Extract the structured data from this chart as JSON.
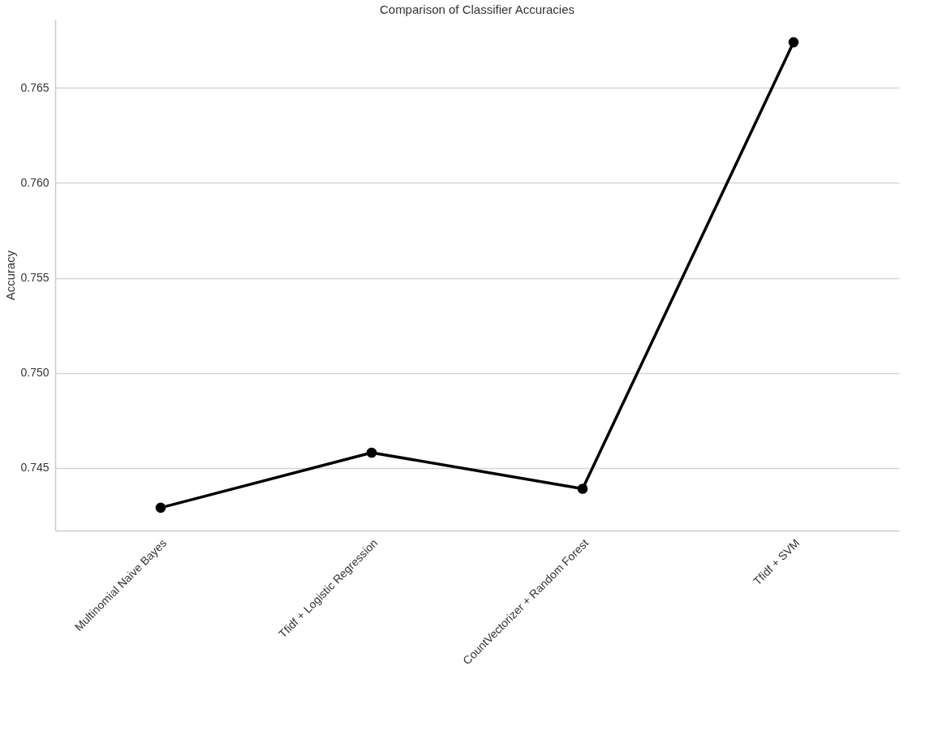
{
  "chart_data": {
    "type": "line",
    "title": "Comparison of Classifier Accuracies",
    "ylabel": "Accuracy",
    "categories": [
      "Multinomial Naive Bayes",
      "Tfidf + Logistic Regression",
      "CountVectorizer + Random Forest",
      "Tfidf + SVM"
    ],
    "series": [
      {
        "color": "#000000",
        "values": [
          0.7429,
          0.7458,
          0.7439,
          0.7674
        ]
      }
    ],
    "ylim": [
      0.7417,
      0.7686
    ],
    "yticks": [
      0.745,
      {
        "value": 0.75,
        "label": "0.750"
      },
      0.755,
      {
        "value": 0.76,
        "label": "0.760"
      },
      0.765
    ],
    "grid": "y",
    "marker": "circle",
    "line_style": "solid",
    "legend": false
  }
}
